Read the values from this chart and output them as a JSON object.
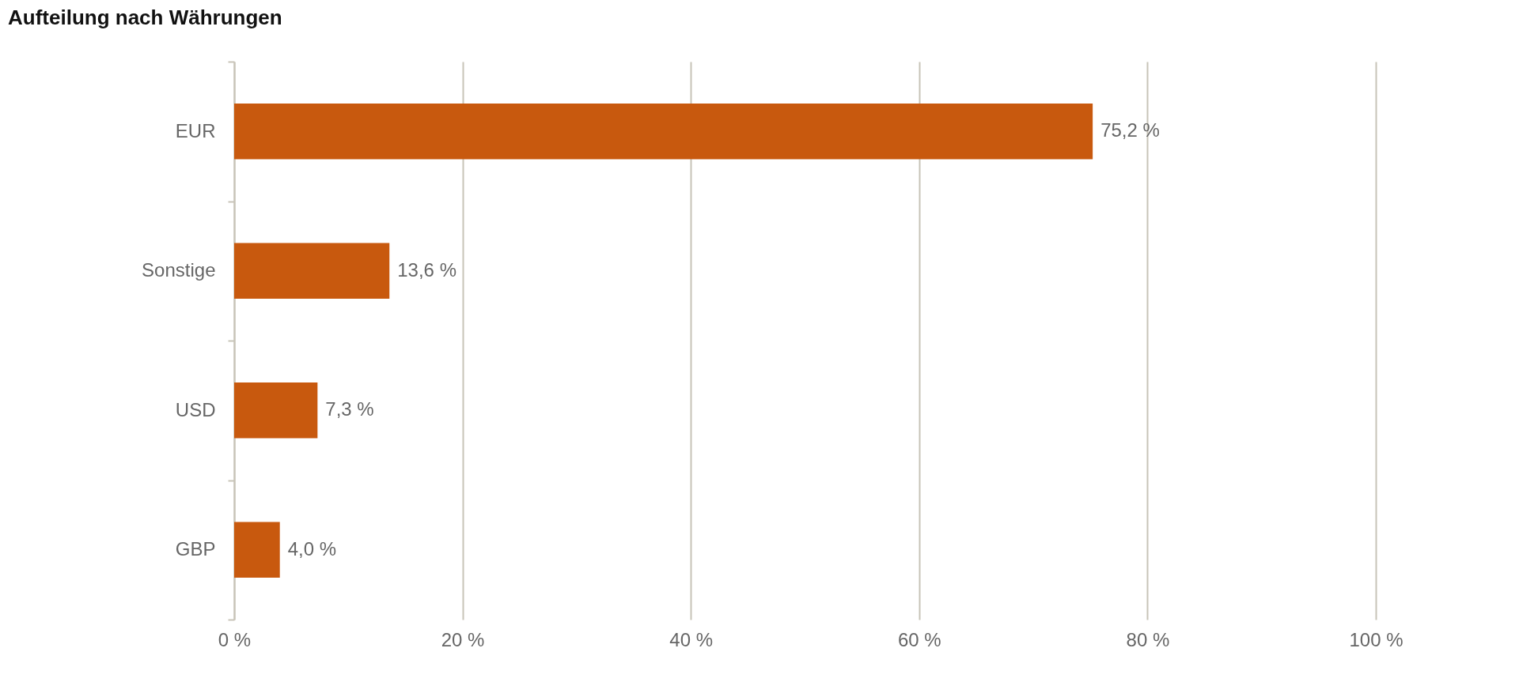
{
  "chart_data": {
    "type": "bar",
    "orientation": "horizontal",
    "title": "Aufteilung nach Währungen",
    "categories": [
      "EUR",
      "Sonstige",
      "USD",
      "GBP"
    ],
    "values": [
      75.2,
      13.6,
      7.3,
      4.0
    ],
    "value_labels": [
      "75,2 %",
      "13,6 %",
      "7,3 %",
      "4,0 %"
    ],
    "color": "#c8590e",
    "xlim": [
      0,
      100
    ],
    "xticks": [
      {
        "value": 0,
        "label": "0 %"
      },
      {
        "value": 20,
        "label": "20 %"
      },
      {
        "value": 40,
        "label": "40 %"
      },
      {
        "value": 60,
        "label": "60 %"
      },
      {
        "value": 80,
        "label": "80 %"
      },
      {
        "value": 100,
        "label": "100 %"
      }
    ],
    "grid": "x"
  }
}
